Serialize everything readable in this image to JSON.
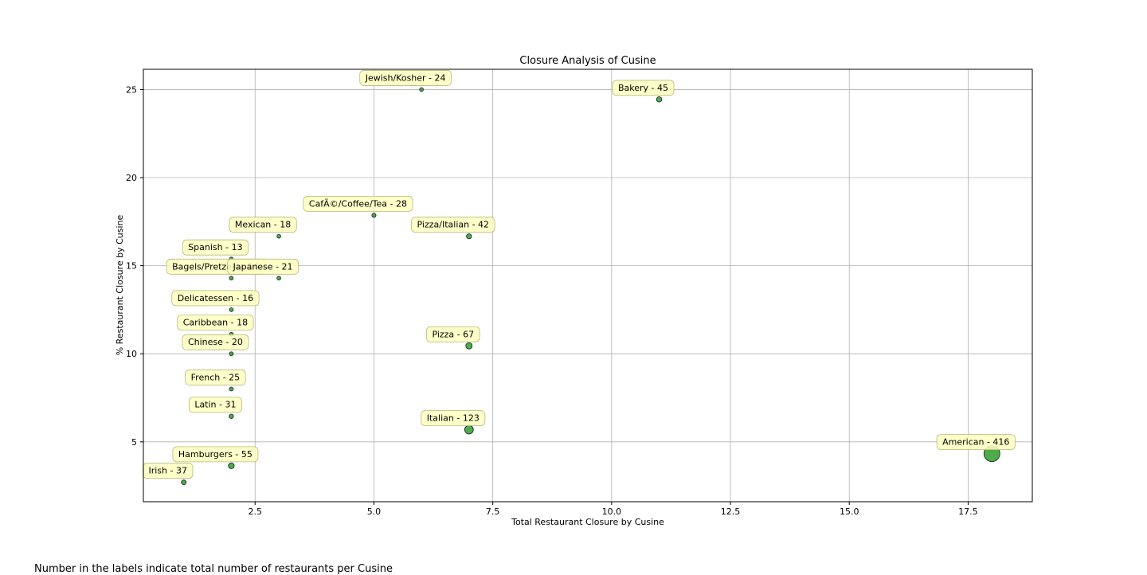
{
  "footnote": "Number in the labels indicate total number of restaurants per Cusine",
  "chart_data": {
    "type": "scatter",
    "title": "Closure Analysis of Cusine",
    "xlabel": "Total Restaurant Closure by Cusine",
    "ylabel": "% Restaurant Closure by Cusine",
    "xlim": [
      0.15,
      18.85
    ],
    "ylim": [
      1.6,
      26.15
    ],
    "xticks": [
      2.5,
      5.0,
      7.5,
      10.0,
      12.5,
      15.0,
      17.5
    ],
    "xtick_labels": [
      "2.5",
      "5.0",
      "7.5",
      "10.0",
      "12.5",
      "15.0",
      "17.5"
    ],
    "yticks": [
      5,
      10,
      15,
      20,
      25
    ],
    "ytick_labels": [
      "5",
      "10",
      "15",
      "20",
      "25"
    ],
    "grid": true,
    "marker_color": "#2ca02c",
    "label_box_color": "#ffffc0",
    "points": [
      {
        "x": 6,
        "y": 25.0,
        "total": 24,
        "label": "Jewish/Kosher - 24"
      },
      {
        "x": 11,
        "y": 24.44,
        "total": 45,
        "label": "Bakery - 45"
      },
      {
        "x": 5,
        "y": 17.86,
        "total": 28,
        "label": "CafÃ©/Coffee/Tea - 28"
      },
      {
        "x": 3,
        "y": 16.67,
        "total": 18,
        "label": "Mexican - 18"
      },
      {
        "x": 7,
        "y": 16.67,
        "total": 42,
        "label": "Pizza/Italian - 42"
      },
      {
        "x": 2,
        "y": 15.38,
        "total": 13,
        "label": "Spanish - 13"
      },
      {
        "x": 2,
        "y": 14.29,
        "total": 14,
        "label": "Bagels/Pretzels - 14"
      },
      {
        "x": 3,
        "y": 14.29,
        "total": 21,
        "label": "Japanese - 21"
      },
      {
        "x": 2,
        "y": 12.5,
        "total": 16,
        "label": "Delicatessen - 16"
      },
      {
        "x": 2,
        "y": 11.11,
        "total": 18,
        "label": "Caribbean - 18"
      },
      {
        "x": 7,
        "y": 10.45,
        "total": 67,
        "label": "Pizza - 67"
      },
      {
        "x": 2,
        "y": 10.0,
        "total": 20,
        "label": "Chinese - 20"
      },
      {
        "x": 2,
        "y": 8.0,
        "total": 25,
        "label": "French - 25"
      },
      {
        "x": 2,
        "y": 6.45,
        "total": 31,
        "label": "Latin - 31"
      },
      {
        "x": 7,
        "y": 5.69,
        "total": 123,
        "label": "Italian - 123"
      },
      {
        "x": 18,
        "y": 4.33,
        "total": 416,
        "label": "American - 416"
      },
      {
        "x": 2,
        "y": 3.64,
        "total": 55,
        "label": "Hamburgers - 55"
      },
      {
        "x": 1,
        "y": 2.7,
        "total": 37,
        "label": "Irish - 37"
      }
    ]
  }
}
